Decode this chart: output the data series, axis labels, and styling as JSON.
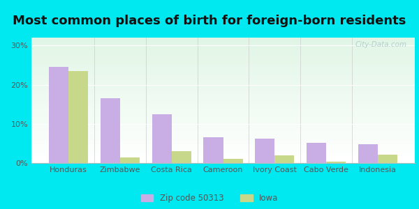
{
  "title": "Most common places of birth for foreign-born residents",
  "categories": [
    "Honduras",
    "Zimbabwe",
    "Costa Rica",
    "Cameroon",
    "Ivory Coast",
    "Cabo Verde",
    "Indonesia"
  ],
  "zip_values": [
    24.5,
    16.5,
    12.5,
    6.5,
    6.2,
    5.2,
    4.8
  ],
  "iowa_values": [
    23.5,
    1.5,
    3.0,
    1.0,
    2.0,
    0.4,
    2.2
  ],
  "zip_color": "#c9aee5",
  "iowa_color": "#c8d88a",
  "ylim": [
    0,
    32
  ],
  "yticks": [
    0,
    10,
    20,
    30
  ],
  "ytick_labels": [
    "0%",
    "10%",
    "20%",
    "30%"
  ],
  "legend_zip": "Zip code 50313",
  "legend_iowa": "Iowa",
  "bg_outer": "#00e8f0",
  "watermark": "City-Data.com",
  "bar_width": 0.38,
  "title_fontsize": 13
}
